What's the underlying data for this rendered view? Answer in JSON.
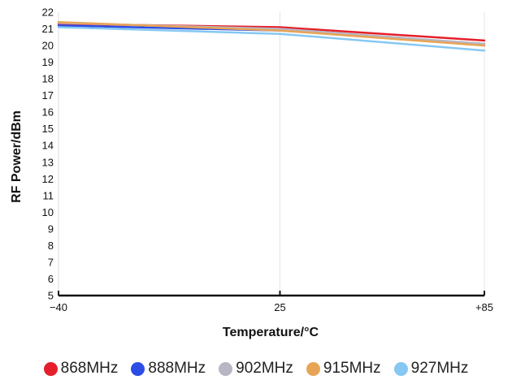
{
  "chart_data": {
    "type": "line",
    "title": "",
    "xlabel": "Temperature/°C",
    "ylabel": "RF Power/dBm",
    "x": [
      -40,
      25,
      85
    ],
    "x_tick_labels": [
      "−40",
      "25",
      "+85"
    ],
    "xlim": [
      -40,
      85
    ],
    "ylim": [
      5,
      22
    ],
    "y_ticks": [
      5,
      6,
      7,
      8,
      9,
      10,
      11,
      12,
      13,
      14,
      15,
      16,
      17,
      18,
      19,
      20,
      21,
      22
    ],
    "grid": "vertical",
    "legend_position": "bottom",
    "series": [
      {
        "name": "868MHz",
        "color": "#e41f2b",
        "values": [
          21.3,
          21.1,
          20.3
        ]
      },
      {
        "name": "888MHz",
        "color": "#2b4de6",
        "values": [
          21.2,
          20.9,
          20.1
        ]
      },
      {
        "name": "902MHz",
        "color": "#b7b6c2",
        "values": [
          21.35,
          21.0,
          20.1
        ]
      },
      {
        "name": "915MHz",
        "color": "#e8a456",
        "values": [
          21.4,
          20.9,
          20.0
        ]
      },
      {
        "name": "927MHz",
        "color": "#86c8f3",
        "values": [
          21.1,
          20.7,
          19.7
        ]
      }
    ]
  }
}
